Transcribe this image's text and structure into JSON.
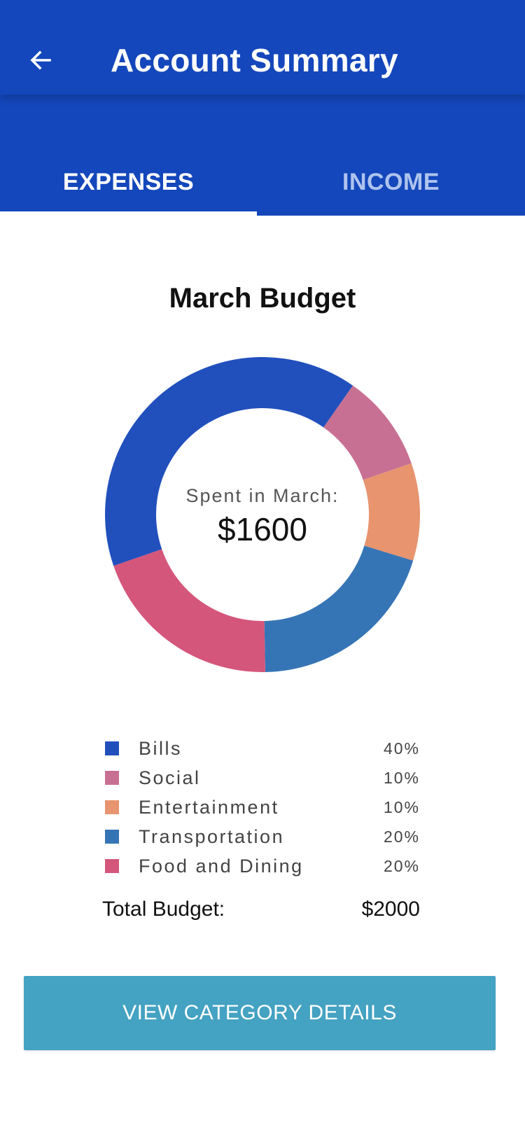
{
  "header": {
    "title": "Account Summary",
    "back_icon": "arrow-left-icon"
  },
  "tabs": [
    {
      "label": "EXPENSES",
      "active": true
    },
    {
      "label": "INCOME",
      "active": false
    }
  ],
  "colors": {
    "primary": "#1447BB",
    "tab_inactive": "#AFC4EE",
    "button": "#44A2C2"
  },
  "budget": {
    "title": "March Budget",
    "spent_label": "Spent in March:",
    "spent_value": "$1600",
    "total_label": "Total Budget:",
    "total_value": "$2000"
  },
  "chart_data": {
    "type": "pie",
    "title": "March Budget",
    "categories": [
      "Bills",
      "Social",
      "Entertainment",
      "Transportation",
      "Food and Dining"
    ],
    "values": [
      40,
      10,
      10,
      20,
      20
    ],
    "labels": [
      "40%",
      "10%",
      "10%",
      "20%",
      "20%"
    ],
    "colors": [
      "#2150BD",
      "#C87093",
      "#E7946F",
      "#3675B5",
      "#D4567B"
    ],
    "donut": true
  },
  "actions": {
    "view_details_label": "VIEW CATEGORY DETAILS"
  }
}
